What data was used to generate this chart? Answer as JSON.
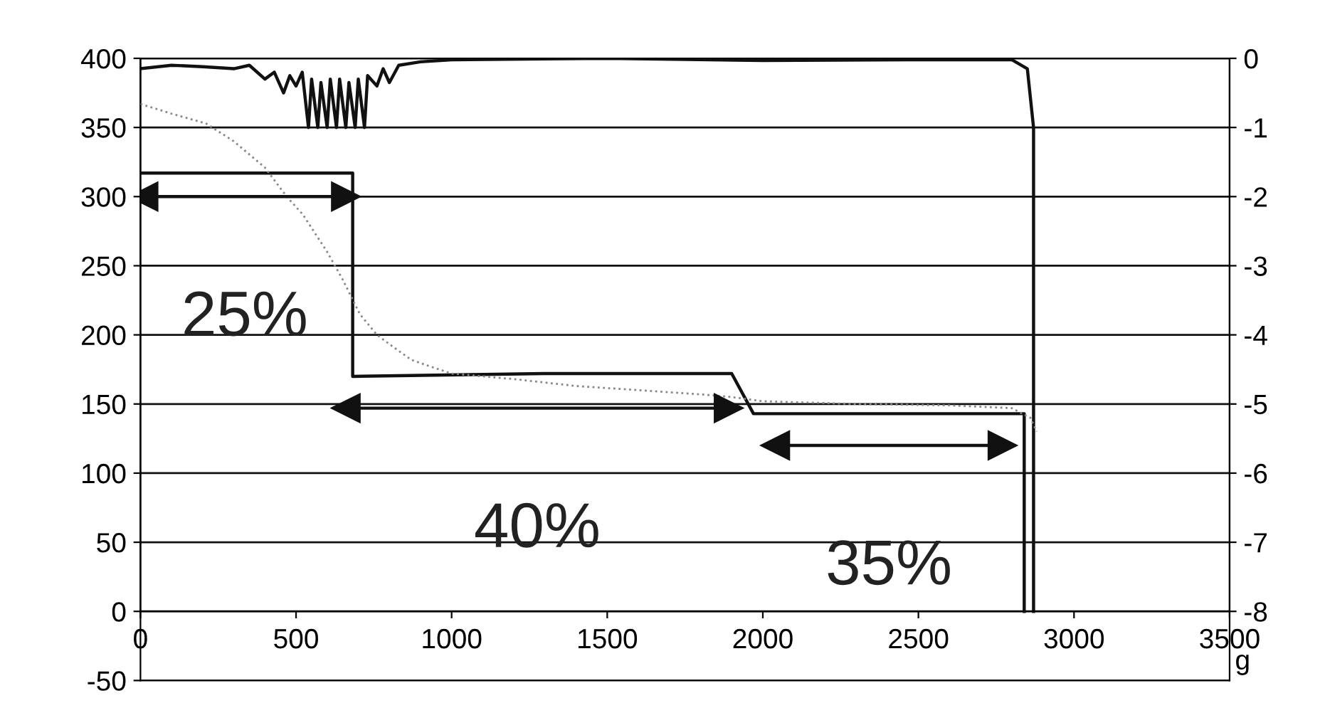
{
  "chart_data": {
    "type": "line",
    "xlabel": "g",
    "xlim": [
      0,
      3500
    ],
    "xticks": [
      0,
      500,
      1000,
      1500,
      2000,
      2500,
      3000,
      3500
    ],
    "ylim": [
      -50,
      400
    ],
    "yticks": [
      -50,
      0,
      50,
      100,
      150,
      200,
      250,
      300,
      350,
      400
    ],
    "y2lim": [
      -9,
      0
    ],
    "y2ticks": [
      {
        "value": -8,
        "label": "-8"
      },
      {
        "value": -7,
        "label": "-7"
      },
      {
        "value": -6,
        "label": "-6"
      },
      {
        "value": -5,
        "label": "-5"
      },
      {
        "value": -4,
        "label": "-4"
      },
      {
        "value": -3,
        "label": "-3"
      },
      {
        "value": -2,
        "label": "-2"
      },
      {
        "value": -1,
        "label": "-1"
      },
      {
        "value": 0,
        "label": "0"
      }
    ],
    "grid": "y",
    "legend": false,
    "series": [
      {
        "axis": "y2",
        "color": "#111111",
        "line_style": "solid",
        "x": [
          0,
          100,
          200,
          300,
          350,
          400,
          430,
          460,
          480,
          500,
          520,
          540,
          550,
          570,
          580,
          600,
          610,
          630,
          640,
          660,
          670,
          690,
          700,
          720,
          730,
          760,
          780,
          800,
          830,
          900,
          1000,
          1500,
          2000,
          2500,
          2800,
          2850,
          2870,
          2870
        ],
        "values": [
          -0.15,
          -0.1,
          -0.12,
          -0.15,
          -0.1,
          -0.3,
          -0.2,
          -0.5,
          -0.25,
          -0.4,
          -0.2,
          -1.0,
          -0.3,
          -1.0,
          -0.35,
          -1.0,
          -0.3,
          -1.0,
          -0.3,
          -1.0,
          -0.35,
          -1.0,
          -0.3,
          -1.0,
          -0.25,
          -0.4,
          -0.15,
          -0.35,
          -0.1,
          -0.05,
          -0.02,
          0,
          -0.03,
          -0.02,
          -0.02,
          -0.15,
          -1,
          -8
        ]
      },
      {
        "color": "#111111",
        "line_style": "solid",
        "x": [
          0,
          682,
          682,
          1300,
          1900,
          1970,
          2840,
          2840
        ],
        "values": [
          317,
          317,
          170,
          172,
          172,
          143,
          143,
          0
        ]
      },
      {
        "color": "#888888",
        "line_style": "dotted",
        "x": [
          0,
          100,
          210,
          300,
          400,
          470,
          522,
          600,
          650,
          705,
          760,
          814,
          870,
          933,
          1000,
          1200,
          1400,
          1600,
          1800,
          1900,
          2000,
          2300,
          2600,
          2800,
          2860,
          2880
        ],
        "values": [
          367,
          360,
          353,
          340,
          321,
          300,
          287,
          260,
          240,
          215,
          200,
          191,
          182,
          177,
          172,
          168,
          163,
          160,
          157,
          155,
          152,
          150,
          149,
          147,
          140,
          130
        ]
      },
      {
        "name": "25%",
        "color": "#111111",
        "line_style": "solid",
        "marker": "triangle",
        "x": [
          10,
          660
        ],
        "values": [
          300,
          300
        ]
      },
      {
        "name": "40%",
        "color": "#111111",
        "line_style": "solid",
        "marker": "triangle",
        "x": [
          660,
          1890
        ],
        "values": [
          147,
          147
        ]
      },
      {
        "name": "35%",
        "color": "#111111",
        "line_style": "solid",
        "marker": "triangle",
        "x": [
          2040,
          2770
        ],
        "values": [
          120,
          120
        ]
      }
    ]
  }
}
